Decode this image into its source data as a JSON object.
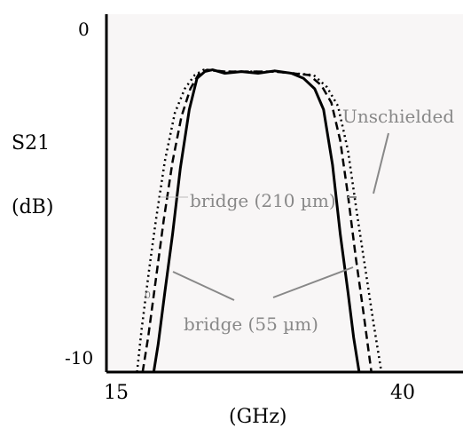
{
  "chart_data": {
    "type": "line",
    "ylabel_line1": "S21",
    "ylabel_line2": "(dB)",
    "xlabel": "(GHz)",
    "xlim": [
      15,
      40
    ],
    "ylim": [
      -10,
      0
    ],
    "x_ticks": [
      "15",
      "40"
    ],
    "y_ticks": [
      "0",
      "-10"
    ],
    "grid": false,
    "series": [
      {
        "name": "bridge (55 µm)",
        "style": "solid",
        "color": "#000000",
        "points": [
          [
            17.1,
            -10
          ],
          [
            17.5,
            -9.2
          ],
          [
            18.1,
            -7.7
          ],
          [
            18.8,
            -6.0
          ],
          [
            19.5,
            -4.1
          ],
          [
            20.3,
            -2.4
          ],
          [
            21.0,
            -1.5
          ],
          [
            21.7,
            -1.3
          ],
          [
            22.4,
            -1.25
          ],
          [
            23.5,
            -1.35
          ],
          [
            25.0,
            -1.3
          ],
          [
            26.5,
            -1.35
          ],
          [
            28.0,
            -1.28
          ],
          [
            29.5,
            -1.35
          ],
          [
            30.6,
            -1.5
          ],
          [
            31.6,
            -1.8
          ],
          [
            32.4,
            -2.4
          ],
          [
            33.2,
            -4.0
          ],
          [
            33.9,
            -6.0
          ],
          [
            34.6,
            -7.7
          ],
          [
            35.1,
            -9.0
          ],
          [
            35.6,
            -10
          ]
        ]
      },
      {
        "name": "bridge (210 µm)",
        "style": "dashed",
        "color": "#000000",
        "points": [
          [
            16.1,
            -10
          ],
          [
            16.6,
            -9.0
          ],
          [
            17.3,
            -7.3
          ],
          [
            18.0,
            -5.6
          ],
          [
            18.8,
            -3.9
          ],
          [
            19.6,
            -2.6
          ],
          [
            20.4,
            -1.8
          ],
          [
            21.2,
            -1.35
          ],
          [
            21.9,
            -1.25
          ],
          [
            23.5,
            -1.3
          ],
          [
            28.0,
            -1.3
          ],
          [
            31.1,
            -1.4
          ],
          [
            32.2,
            -1.7
          ],
          [
            33.1,
            -2.2
          ],
          [
            33.9,
            -3.3
          ],
          [
            34.6,
            -4.9
          ],
          [
            35.3,
            -6.7
          ],
          [
            36.0,
            -8.3
          ],
          [
            36.7,
            -10
          ]
        ]
      },
      {
        "name": "Unschielded",
        "style": "dotted",
        "color": "#000000",
        "points": [
          [
            15.6,
            -10
          ],
          [
            16.0,
            -8.8
          ],
          [
            16.7,
            -7.0
          ],
          [
            17.3,
            -5.6
          ],
          [
            18.1,
            -3.9
          ],
          [
            19.0,
            -2.5
          ],
          [
            19.9,
            -1.8
          ],
          [
            20.8,
            -1.4
          ],
          [
            21.6,
            -1.25
          ],
          [
            23.5,
            -1.3
          ],
          [
            28.0,
            -1.3
          ],
          [
            31.5,
            -1.4
          ],
          [
            32.7,
            -1.75
          ],
          [
            33.7,
            -2.3
          ],
          [
            34.6,
            -3.6
          ],
          [
            35.4,
            -5.4
          ],
          [
            36.2,
            -7.1
          ],
          [
            36.9,
            -8.6
          ],
          [
            37.6,
            -10
          ]
        ]
      }
    ],
    "annotations": {
      "unschielded": "Unschielded",
      "bridge210": "bridge (210 µm)",
      "bridge55": "bridge (55 µm)",
      "small_mark": "0"
    }
  }
}
